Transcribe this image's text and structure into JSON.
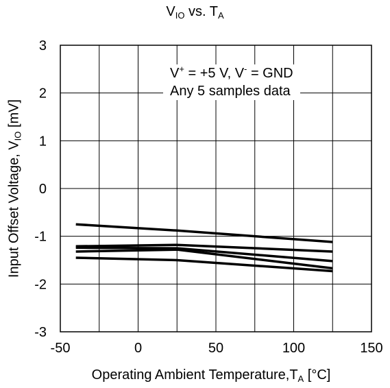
{
  "chart_data": {
    "type": "line",
    "title": {
      "main": "V",
      "main_sub": "IO",
      "vs": " vs. T",
      "vs_sub": "A"
    },
    "xlabel": {
      "main": "Operating Ambient Temperature,T",
      "sub": "A",
      "unit": " [°C]"
    },
    "ylabel": {
      "main": "Input Offset Voltage, V",
      "sub": "IO",
      "unit": " [mV]"
    },
    "xlim": [
      -50,
      150
    ],
    "ylim": [
      -3,
      3
    ],
    "xticks": [
      -50,
      0,
      50,
      100,
      150
    ],
    "yticks": [
      -3,
      -2,
      -1,
      0,
      1,
      2,
      3
    ],
    "x_gridlines": [
      -50,
      -25,
      0,
      25,
      50,
      75,
      100,
      125,
      150
    ],
    "y_gridlines": [
      -3,
      -2,
      -1,
      0,
      1,
      2,
      3
    ],
    "grid": true,
    "annotation": {
      "line1_a": "V",
      "line1_a_sup": "+",
      "line1_b": " = +5 V, V",
      "line1_b_sup": "-",
      "line1_c": " = GND",
      "line2": "Any 5 samples data"
    },
    "x": [
      -40,
      25,
      125
    ],
    "series": [
      {
        "values": [
          -0.75,
          -0.88,
          -1.12
        ]
      },
      {
        "values": [
          -1.21,
          -1.18,
          -1.32
        ]
      },
      {
        "values": [
          -1.24,
          -1.25,
          -1.52
        ]
      },
      {
        "values": [
          -1.32,
          -1.28,
          -1.67
        ]
      },
      {
        "values": [
          -1.45,
          -1.5,
          -1.73
        ]
      }
    ],
    "line_color": "#000000"
  }
}
